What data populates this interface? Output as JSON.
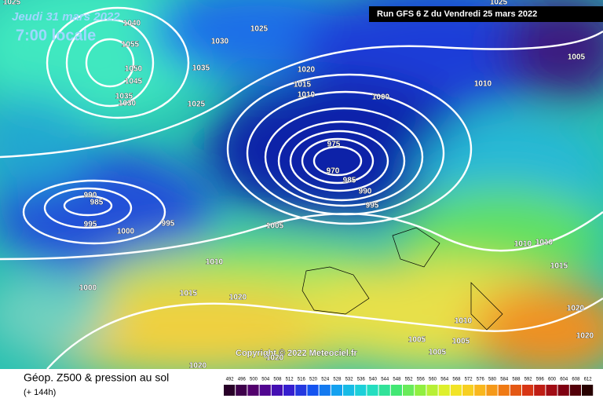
{
  "header": {
    "date": "Jeudi 31 mars 2022",
    "time": "7:00 locale",
    "run": "Run GFS 6 Z du Vendredi 25 mars 2022"
  },
  "footer": {
    "title": "Géop. Z500 & pression au sol",
    "lead": "(+ 144h)",
    "copyright": "Copyright © 2022 Meteociel.fr"
  },
  "scale": {
    "labels": [
      492,
      496,
      500,
      504,
      508,
      512,
      516,
      520,
      524,
      528,
      532,
      536,
      540,
      544,
      548,
      552,
      556,
      560,
      564,
      568,
      572,
      576,
      580,
      584,
      588,
      592,
      596,
      600,
      604,
      608,
      612
    ]
  },
  "isobars": {
    "labels": [
      1025,
      1040,
      1055,
      1030,
      1025,
      1050,
      1045,
      1035,
      1035,
      1030,
      1025,
      1020,
      1015,
      1010,
      1000,
      975,
      970,
      985,
      990,
      995,
      990,
      985,
      995,
      1000,
      995,
      1005,
      1010,
      1015,
      1020,
      1000,
      1005,
      1010,
      1025,
      1010,
      1010,
      1015,
      1010,
      1020,
      1020,
      1005,
      1005,
      1005,
      1020,
      1020
    ]
  }
}
